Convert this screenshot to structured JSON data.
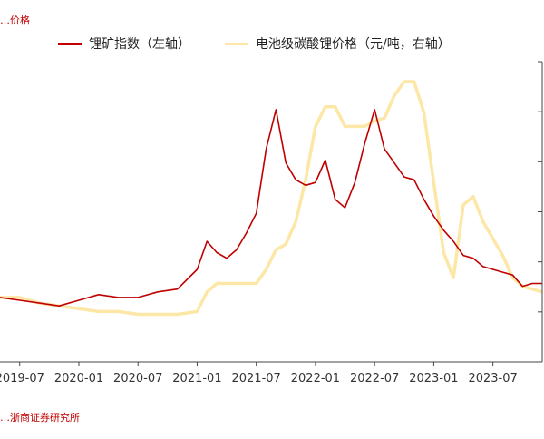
{
  "header": {
    "note": "…价格"
  },
  "footer": {
    "source": "…浙商证券研究所"
  },
  "chart_data": {
    "type": "line",
    "title": "",
    "xlabel": "",
    "ylabel": "",
    "x_ticks": [
      "2019-07",
      "2020-01",
      "2020-07",
      "2021-01",
      "2021-07",
      "2022-01",
      "2022-07",
      "2023-01",
      "2023-07"
    ],
    "x_range": [
      "2019-05",
      "2023-12"
    ],
    "y_left_range": [
      0,
      100
    ],
    "y_right_range": [
      0,
      100
    ],
    "grid": false,
    "legend_position": "top",
    "series": [
      {
        "name": "锂矿指数（左轴）",
        "axis": "left",
        "color": "#c00000",
        "x": [
          "2019-05",
          "2019-07",
          "2019-09",
          "2019-11",
          "2020-01",
          "2020-03",
          "2020-05",
          "2020-07",
          "2020-09",
          "2020-11",
          "2021-01",
          "2021-02",
          "2021-03",
          "2021-04",
          "2021-05",
          "2021-06",
          "2021-07",
          "2021-08",
          "2021-09",
          "2021-10",
          "2021-11",
          "2021-12",
          "2022-01",
          "2022-02",
          "2022-03",
          "2022-04",
          "2022-05",
          "2022-06",
          "2022-07",
          "2022-08",
          "2022-09",
          "2022-10",
          "2022-11",
          "2022-12",
          "2023-01",
          "2023-02",
          "2023-03",
          "2023-04",
          "2023-05",
          "2023-06",
          "2023-07",
          "2023-08",
          "2023-09",
          "2023-10",
          "2023-11",
          "2023-12"
        ],
        "values": [
          23,
          22,
          21,
          20,
          22,
          24,
          23,
          23,
          25,
          26,
          33,
          43,
          39,
          37,
          40,
          46,
          53,
          76,
          90,
          71,
          65,
          63,
          64,
          72,
          58,
          55,
          64,
          78,
          90,
          76,
          71,
          66,
          65,
          58,
          52,
          47,
          43,
          38,
          37,
          34,
          33,
          32,
          31,
          27,
          28,
          28
        ]
      },
      {
        "name": "电池级碳酸锂价格（元/吨，右轴）",
        "axis": "right",
        "color": "#fce7a6",
        "x": [
          "2019-05",
          "2019-07",
          "2019-09",
          "2019-11",
          "2020-01",
          "2020-03",
          "2020-05",
          "2020-07",
          "2020-09",
          "2020-11",
          "2021-01",
          "2021-02",
          "2021-03",
          "2021-04",
          "2021-05",
          "2021-06",
          "2021-07",
          "2021-08",
          "2021-09",
          "2021-10",
          "2021-11",
          "2021-12",
          "2022-01",
          "2022-02",
          "2022-03",
          "2022-04",
          "2022-05",
          "2022-06",
          "2022-07",
          "2022-08",
          "2022-09",
          "2022-10",
          "2022-11",
          "2022-12",
          "2023-01",
          "2023-02",
          "2023-03",
          "2023-04",
          "2023-05",
          "2023-06",
          "2023-07",
          "2023-08",
          "2023-09",
          "2023-10",
          "2023-11",
          "2023-12"
        ],
        "values": [
          23,
          23,
          21,
          20,
          19,
          18,
          18,
          17,
          17,
          17,
          18,
          25,
          28,
          28,
          28,
          28,
          28,
          33,
          40,
          42,
          50,
          65,
          84,
          91,
          91,
          84,
          84,
          84,
          86,
          87,
          95,
          100,
          100,
          89,
          64,
          39,
          30,
          56,
          59,
          50,
          44,
          38,
          30,
          27,
          26,
          25
        ]
      }
    ]
  }
}
